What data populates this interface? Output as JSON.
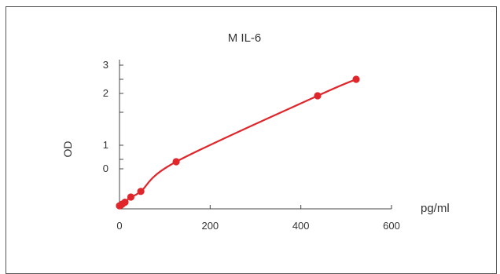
{
  "chart_data": {
    "type": "line",
    "title": "M IL-6",
    "xlabel": "pg/ml",
    "ylabel": "OD",
    "xlim": [
      0,
      600
    ],
    "ylim": [
      -0.05,
      3.05
    ],
    "x_ticks": [
      0,
      200,
      400,
      600
    ],
    "y_ticks": [
      {
        "value": 0.8,
        "label": "0"
      },
      {
        "value": 1.0,
        "label": ""
      },
      {
        "value": 1.3,
        "label": "1"
      },
      {
        "value": 2.0,
        "label": ""
      },
      {
        "value": 2.4,
        "label": "2"
      },
      {
        "value": 2.7,
        "label": ""
      },
      {
        "value": 3.0,
        "label": "3"
      }
    ],
    "grid": false,
    "legend": "none",
    "series": [
      {
        "color": "#e0262b",
        "x": [
          0,
          3,
          6,
          12,
          25,
          47,
          125,
          437,
          522
        ],
        "y": [
          0.015,
          0.03,
          0.05,
          0.09,
          0.2,
          0.32,
          0.95,
          2.35,
          2.7
        ]
      }
    ]
  }
}
